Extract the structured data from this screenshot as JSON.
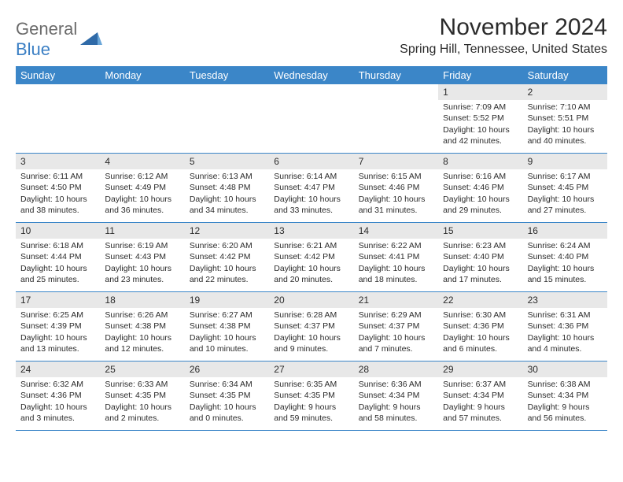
{
  "logo": {
    "line1": "General",
    "line2": "Blue"
  },
  "title": "November 2024",
  "location": "Spring Hill, Tennessee, United States",
  "colors": {
    "header_bg": "#3b86c8",
    "header_text": "#ffffff",
    "daynum_bg": "#e8e8e8",
    "border": "#3b86c8",
    "logo_gray": "#6b6b6b",
    "logo_blue": "#3b7fc4"
  },
  "daynames": [
    "Sunday",
    "Monday",
    "Tuesday",
    "Wednesday",
    "Thursday",
    "Friday",
    "Saturday"
  ],
  "weeks": [
    [
      {
        "empty": true
      },
      {
        "empty": true
      },
      {
        "empty": true
      },
      {
        "empty": true
      },
      {
        "empty": true
      },
      {
        "day": "1",
        "sunrise": "Sunrise: 7:09 AM",
        "sunset": "Sunset: 5:52 PM",
        "daylight": "Daylight: 10 hours and 42 minutes."
      },
      {
        "day": "2",
        "sunrise": "Sunrise: 7:10 AM",
        "sunset": "Sunset: 5:51 PM",
        "daylight": "Daylight: 10 hours and 40 minutes."
      }
    ],
    [
      {
        "day": "3",
        "sunrise": "Sunrise: 6:11 AM",
        "sunset": "Sunset: 4:50 PM",
        "daylight": "Daylight: 10 hours and 38 minutes."
      },
      {
        "day": "4",
        "sunrise": "Sunrise: 6:12 AM",
        "sunset": "Sunset: 4:49 PM",
        "daylight": "Daylight: 10 hours and 36 minutes."
      },
      {
        "day": "5",
        "sunrise": "Sunrise: 6:13 AM",
        "sunset": "Sunset: 4:48 PM",
        "daylight": "Daylight: 10 hours and 34 minutes."
      },
      {
        "day": "6",
        "sunrise": "Sunrise: 6:14 AM",
        "sunset": "Sunset: 4:47 PM",
        "daylight": "Daylight: 10 hours and 33 minutes."
      },
      {
        "day": "7",
        "sunrise": "Sunrise: 6:15 AM",
        "sunset": "Sunset: 4:46 PM",
        "daylight": "Daylight: 10 hours and 31 minutes."
      },
      {
        "day": "8",
        "sunrise": "Sunrise: 6:16 AM",
        "sunset": "Sunset: 4:46 PM",
        "daylight": "Daylight: 10 hours and 29 minutes."
      },
      {
        "day": "9",
        "sunrise": "Sunrise: 6:17 AM",
        "sunset": "Sunset: 4:45 PM",
        "daylight": "Daylight: 10 hours and 27 minutes."
      }
    ],
    [
      {
        "day": "10",
        "sunrise": "Sunrise: 6:18 AM",
        "sunset": "Sunset: 4:44 PM",
        "daylight": "Daylight: 10 hours and 25 minutes."
      },
      {
        "day": "11",
        "sunrise": "Sunrise: 6:19 AM",
        "sunset": "Sunset: 4:43 PM",
        "daylight": "Daylight: 10 hours and 23 minutes."
      },
      {
        "day": "12",
        "sunrise": "Sunrise: 6:20 AM",
        "sunset": "Sunset: 4:42 PM",
        "daylight": "Daylight: 10 hours and 22 minutes."
      },
      {
        "day": "13",
        "sunrise": "Sunrise: 6:21 AM",
        "sunset": "Sunset: 4:42 PM",
        "daylight": "Daylight: 10 hours and 20 minutes."
      },
      {
        "day": "14",
        "sunrise": "Sunrise: 6:22 AM",
        "sunset": "Sunset: 4:41 PM",
        "daylight": "Daylight: 10 hours and 18 minutes."
      },
      {
        "day": "15",
        "sunrise": "Sunrise: 6:23 AM",
        "sunset": "Sunset: 4:40 PM",
        "daylight": "Daylight: 10 hours and 17 minutes."
      },
      {
        "day": "16",
        "sunrise": "Sunrise: 6:24 AM",
        "sunset": "Sunset: 4:40 PM",
        "daylight": "Daylight: 10 hours and 15 minutes."
      }
    ],
    [
      {
        "day": "17",
        "sunrise": "Sunrise: 6:25 AM",
        "sunset": "Sunset: 4:39 PM",
        "daylight": "Daylight: 10 hours and 13 minutes."
      },
      {
        "day": "18",
        "sunrise": "Sunrise: 6:26 AM",
        "sunset": "Sunset: 4:38 PM",
        "daylight": "Daylight: 10 hours and 12 minutes."
      },
      {
        "day": "19",
        "sunrise": "Sunrise: 6:27 AM",
        "sunset": "Sunset: 4:38 PM",
        "daylight": "Daylight: 10 hours and 10 minutes."
      },
      {
        "day": "20",
        "sunrise": "Sunrise: 6:28 AM",
        "sunset": "Sunset: 4:37 PM",
        "daylight": "Daylight: 10 hours and 9 minutes."
      },
      {
        "day": "21",
        "sunrise": "Sunrise: 6:29 AM",
        "sunset": "Sunset: 4:37 PM",
        "daylight": "Daylight: 10 hours and 7 minutes."
      },
      {
        "day": "22",
        "sunrise": "Sunrise: 6:30 AM",
        "sunset": "Sunset: 4:36 PM",
        "daylight": "Daylight: 10 hours and 6 minutes."
      },
      {
        "day": "23",
        "sunrise": "Sunrise: 6:31 AM",
        "sunset": "Sunset: 4:36 PM",
        "daylight": "Daylight: 10 hours and 4 minutes."
      }
    ],
    [
      {
        "day": "24",
        "sunrise": "Sunrise: 6:32 AM",
        "sunset": "Sunset: 4:36 PM",
        "daylight": "Daylight: 10 hours and 3 minutes."
      },
      {
        "day": "25",
        "sunrise": "Sunrise: 6:33 AM",
        "sunset": "Sunset: 4:35 PM",
        "daylight": "Daylight: 10 hours and 2 minutes."
      },
      {
        "day": "26",
        "sunrise": "Sunrise: 6:34 AM",
        "sunset": "Sunset: 4:35 PM",
        "daylight": "Daylight: 10 hours and 0 minutes."
      },
      {
        "day": "27",
        "sunrise": "Sunrise: 6:35 AM",
        "sunset": "Sunset: 4:35 PM",
        "daylight": "Daylight: 9 hours and 59 minutes."
      },
      {
        "day": "28",
        "sunrise": "Sunrise: 6:36 AM",
        "sunset": "Sunset: 4:34 PM",
        "daylight": "Daylight: 9 hours and 58 minutes."
      },
      {
        "day": "29",
        "sunrise": "Sunrise: 6:37 AM",
        "sunset": "Sunset: 4:34 PM",
        "daylight": "Daylight: 9 hours and 57 minutes."
      },
      {
        "day": "30",
        "sunrise": "Sunrise: 6:38 AM",
        "sunset": "Sunset: 4:34 PM",
        "daylight": "Daylight: 9 hours and 56 minutes."
      }
    ]
  ]
}
